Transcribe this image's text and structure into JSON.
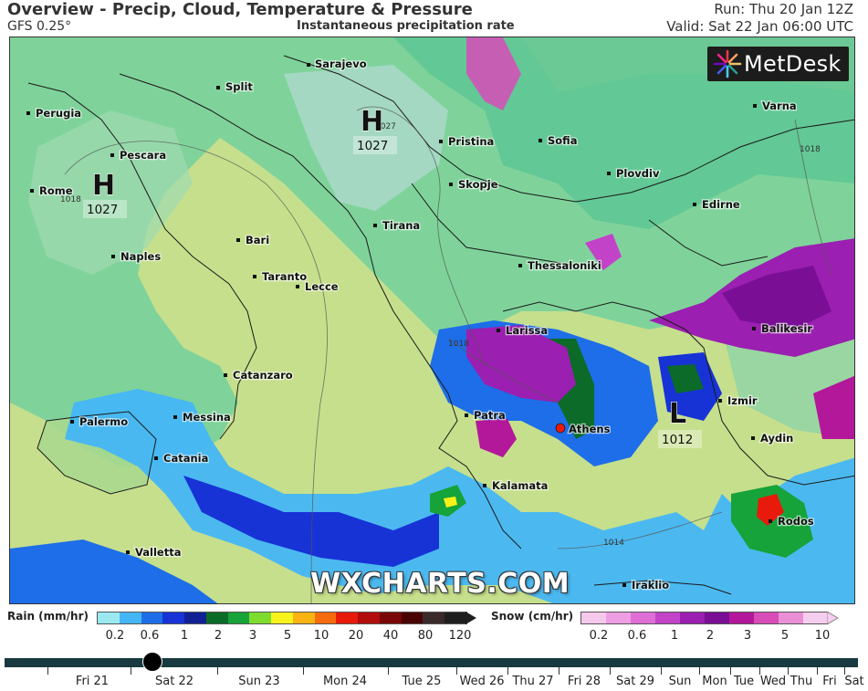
{
  "header": {
    "title": "Overview - Precip, Cloud, Temperature & Pressure",
    "model": "GFS 0.25°",
    "subtitle": "Instantaneous precipitation rate",
    "run": "Run: Thu 20 Jan 12Z",
    "valid": "Valid: Sat 22 Jan 06:00 UTC"
  },
  "logo": {
    "text": "MetDesk"
  },
  "watermark": "WXCHARTS.COM",
  "cities": [
    {
      "name": "Sarajevo"
    },
    {
      "name": "Split"
    },
    {
      "name": "Perugia"
    },
    {
      "name": "Pescara"
    },
    {
      "name": "Rome"
    },
    {
      "name": "Pristina"
    },
    {
      "name": "Sofia"
    },
    {
      "name": "Varna"
    },
    {
      "name": "Skopje"
    },
    {
      "name": "Plovdiv"
    },
    {
      "name": "Edirne"
    },
    {
      "name": "Tirana"
    },
    {
      "name": "Bari"
    },
    {
      "name": "Naples"
    },
    {
      "name": "Taranto"
    },
    {
      "name": "Lecce"
    },
    {
      "name": "Thessaloniki"
    },
    {
      "name": "Larissa"
    },
    {
      "name": "Balikesir"
    },
    {
      "name": "Catanzaro"
    },
    {
      "name": "Izmir"
    },
    {
      "name": "Palermo"
    },
    {
      "name": "Messina"
    },
    {
      "name": "Patra"
    },
    {
      "name": "Athens"
    },
    {
      "name": "Aydin"
    },
    {
      "name": "Catania"
    },
    {
      "name": "Kalamata"
    },
    {
      "name": "Rodos"
    },
    {
      "name": "Valletta"
    },
    {
      "name": "Iraklio"
    }
  ],
  "pressure_systems": [
    {
      "type": "H",
      "value": "1027"
    },
    {
      "type": "H",
      "value": "1027"
    },
    {
      "type": "L",
      "value": "1012"
    }
  ],
  "isobar_labels": [
    "1018",
    "1018",
    "1018",
    "1014",
    "1027"
  ],
  "legend": {
    "rain": {
      "title": "Rain (mm/hr)",
      "ticks": [
        "0.2",
        "0.6",
        "1",
        "2",
        "3",
        "5",
        "10",
        "20",
        "40",
        "80",
        "120"
      ],
      "colors": [
        "#9be9f0",
        "#45b6f5",
        "#1d6ee8",
        "#1733d6",
        "#122095",
        "#0c6b28",
        "#16a33a",
        "#7ddc2e",
        "#f6f21a",
        "#f9b312",
        "#f66b0e",
        "#e81a0c",
        "#b30c0c",
        "#7a0707",
        "#4a0404",
        "#3a2a2a",
        "#1e1e1e"
      ]
    },
    "snow": {
      "title": "Snow (cm/hr)",
      "ticks": [
        "0.2",
        "0.6",
        "1",
        "2",
        "3",
        "5",
        "10"
      ],
      "colors": [
        "#f5c8ec",
        "#ee9ee2",
        "#df6fd6",
        "#c243c8",
        "#9b1fb0",
        "#7a0f96",
        "#b3189a",
        "#d84cb8",
        "#ea8fd6",
        "#f5cdee"
      ]
    }
  },
  "timeline": {
    "days": [
      "Fri 21",
      "Sat 22",
      "Sun 23",
      "Mon 24",
      "Tue 25",
      "Wed 26",
      "Thu 27",
      "Fri 28",
      "Sat 29",
      "Sun",
      "Mon",
      "Tue",
      "Wed",
      "Thu",
      "Fri",
      "Sat"
    ],
    "selected": "Sat 22"
  }
}
